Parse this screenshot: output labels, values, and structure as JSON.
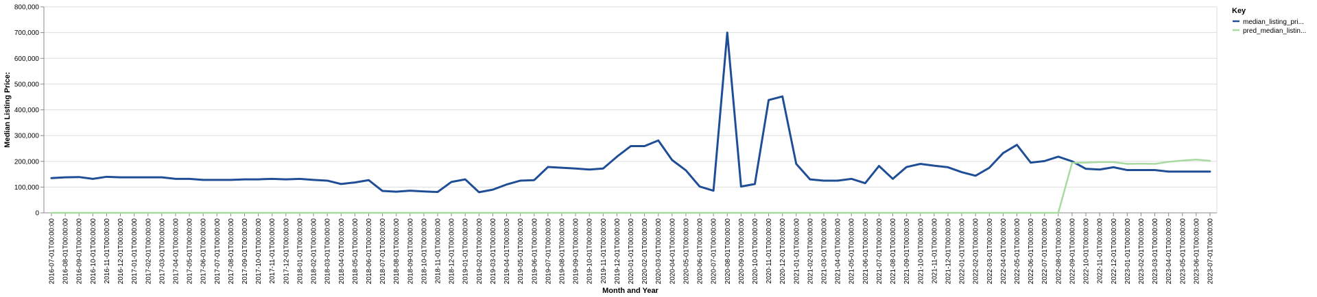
{
  "chart_data": {
    "type": "line",
    "xlabel": "Month and Year",
    "ylabel": "Median Listing Price:",
    "ylim": [
      0,
      800000
    ],
    "y_ticks": [
      0,
      100000,
      200000,
      300000,
      400000,
      500000,
      600000,
      700000,
      800000
    ],
    "grid": true,
    "legend": {
      "title": "Key",
      "placement": "top-right"
    },
    "categories": [
      "2016-07-01T00:00:00",
      "2016-08-01T00:00:00",
      "2016-09-01T00:00:00",
      "2016-10-01T00:00:00",
      "2016-11-01T00:00:00",
      "2016-12-01T00:00:00",
      "2017-01-01T00:00:00",
      "2017-02-01T00:00:00",
      "2017-03-01T00:00:00",
      "2017-04-01T00:00:00",
      "2017-05-01T00:00:00",
      "2017-06-01T00:00:00",
      "2017-07-01T00:00:00",
      "2017-08-01T00:00:00",
      "2017-09-01T00:00:00",
      "2017-10-01T00:00:00",
      "2017-11-01T00:00:00",
      "2017-12-01T00:00:00",
      "2018-01-01T00:00:00",
      "2018-02-01T00:00:00",
      "2018-03-01T00:00:00",
      "2018-04-01T00:00:00",
      "2018-05-01T00:00:00",
      "2018-06-01T00:00:00",
      "2018-07-01T00:00:00",
      "2018-08-01T00:00:00",
      "2018-09-01T00:00:00",
      "2018-10-01T00:00:00",
      "2018-11-01T00:00:00",
      "2018-12-01T00:00:00",
      "2019-01-01T00:00:00",
      "2019-02-01T00:00:00",
      "2019-03-01T00:00:00",
      "2019-04-01T00:00:00",
      "2019-05-01T00:00:00",
      "2019-06-01T00:00:00",
      "2019-07-01T00:00:00",
      "2019-08-01T00:00:00",
      "2019-09-01T00:00:00",
      "2019-10-01T00:00:00",
      "2019-11-01T00:00:00",
      "2019-12-01T00:00:00",
      "2020-01-01T00:00:00",
      "2020-02-01T00:00:00",
      "2020-03-01T00:00:00",
      "2020-04-01T00:00:00",
      "2020-05-01T00:00:00",
      "2020-06-01T00:00:00",
      "2020-07-01T00:00:00",
      "2020-08-01T00:00:00",
      "2020-09-01T00:00:00",
      "2020-10-01T00:00:00",
      "2020-11-01T00:00:00",
      "2020-12-01T00:00:00",
      "2021-01-01T00:00:00",
      "2021-02-01T00:00:00",
      "2021-03-01T00:00:00",
      "2021-04-01T00:00:00",
      "2021-05-01T00:00:00",
      "2021-06-01T00:00:00",
      "2021-07-01T00:00:00",
      "2021-08-01T00:00:00",
      "2021-09-01T00:00:00",
      "2021-10-01T00:00:00",
      "2021-11-01T00:00:00",
      "2021-12-01T00:00:00",
      "2022-01-01T00:00:00",
      "2022-02-01T00:00:00",
      "2022-03-01T00:00:00",
      "2022-04-01T00:00:00",
      "2022-05-01T00:00:00",
      "2022-06-01T00:00:00",
      "2022-07-01T00:00:00",
      "2022-08-01T00:00:00",
      "2022-09-01T00:00:00",
      "2022-10-01T00:00:00",
      "2022-11-01T00:00:00",
      "2022-12-01T00:00:00",
      "2023-01-01T00:00:00",
      "2023-02-01T00:00:00",
      "2023-03-01T00:00:00",
      "2023-04-01T00:00:00",
      "2023-05-01T00:00:00",
      "2023-06-01T00:00:00",
      "2023-07-01T00:00:00"
    ],
    "series": [
      {
        "name": "median_listing_pri...",
        "color": "#1f4e96",
        "values": [
          135000,
          138000,
          139000,
          132000,
          140000,
          138000,
          138000,
          138000,
          138000,
          132000,
          132000,
          128000,
          128000,
          128000,
          130000,
          130000,
          132000,
          130000,
          132000,
          128000,
          125000,
          112000,
          118000,
          127000,
          85000,
          82000,
          86000,
          83000,
          81000,
          120000,
          130000,
          80000,
          90000,
          110000,
          125000,
          127000,
          178000,
          175000,
          172000,
          168000,
          172000,
          218000,
          259000,
          259000,
          281000,
          205000,
          165000,
          102000,
          86000,
          700000,
          102000,
          112000,
          438000,
          452000,
          190000,
          130000,
          125000,
          125000,
          132000,
          115000,
          182000,
          132000,
          178000,
          190000,
          183000,
          177000,
          158000,
          144000,
          175000,
          232000,
          264000,
          195000,
          201000,
          218000,
          200000,
          171000,
          168000,
          177000,
          166000,
          166000,
          166000,
          160000,
          160000,
          160000,
          160000
        ]
      },
      {
        "name": "pred_median_listin...",
        "color": "#a7dba0",
        "values": [
          0,
          0,
          0,
          0,
          0,
          0,
          0,
          0,
          0,
          0,
          0,
          0,
          0,
          0,
          0,
          0,
          0,
          0,
          0,
          0,
          0,
          0,
          0,
          0,
          0,
          0,
          0,
          0,
          0,
          0,
          0,
          0,
          0,
          0,
          0,
          0,
          0,
          0,
          0,
          0,
          0,
          0,
          0,
          0,
          0,
          0,
          0,
          0,
          0,
          0,
          0,
          0,
          0,
          0,
          0,
          0,
          0,
          0,
          0,
          0,
          0,
          0,
          0,
          0,
          0,
          0,
          0,
          0,
          0,
          0,
          0,
          0,
          0,
          0,
          194000,
          195000,
          197000,
          197000,
          190000,
          191000,
          190000,
          198000,
          203000,
          207000,
          202000
        ]
      }
    ]
  }
}
